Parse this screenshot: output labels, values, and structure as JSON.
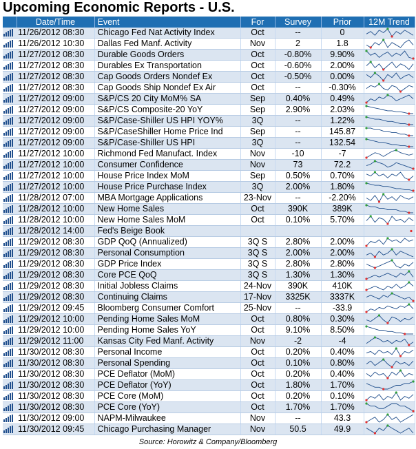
{
  "title": "Upcoming Economic Reports - U.S.",
  "source": "Source: Horowitz & Company/Bloomberg",
  "columns": [
    "Date/Time",
    "Event",
    "For",
    "Survey",
    "Prior",
    "12M Trend"
  ],
  "icon": "bar-chart-icon",
  "colors": {
    "header_bg": "#1f6fb3",
    "row_alt": "#dbe5f1",
    "trend_line": "#1f4e8c",
    "trend_low": "#e03030",
    "trend_high": "#2e9d3a"
  },
  "rows": [
    {
      "datetime": "11/26/2012 08:30",
      "event": "Chicago Fed Nat Activity Index",
      "for": "Oct",
      "survey": "--",
      "prior": "0"
    },
    {
      "datetime": "11/26/2012 10:30",
      "event": "Dallas Fed Manf. Activity",
      "for": "Nov",
      "survey": "2",
      "prior": "1.8"
    },
    {
      "datetime": "11/27/2012 08:30",
      "event": "Durable Goods Orders",
      "for": "Oct",
      "survey": "-0.80%",
      "prior": "9.90%"
    },
    {
      "datetime": "11/27/2012 08:30",
      "event": "Durables Ex Transportation",
      "for": "Oct",
      "survey": "-0.60%",
      "prior": "2.00%"
    },
    {
      "datetime": "11/27/2012 08:30",
      "event": "Cap Goods Orders Nondef Ex",
      "for": "Oct",
      "survey": "-0.50%",
      "prior": "0.00%"
    },
    {
      "datetime": "11/27/2012 08:30",
      "event": "Cap Goods Ship Nondef Ex Air",
      "for": "Oct",
      "survey": "--",
      "prior": "-0.30%"
    },
    {
      "datetime": "11/27/2012 09:00",
      "event": "S&P/CS 20 City MoM% SA",
      "for": "Sep",
      "survey": "0.40%",
      "prior": "0.49%"
    },
    {
      "datetime": "11/27/2012 09:00",
      "event": "S&P/CS Composite-20 YoY",
      "for": "Sep",
      "survey": "2.90%",
      "prior": "2.03%"
    },
    {
      "datetime": "11/27/2012 09:00",
      "event": "S&P/Case-Shiller US HPI YOY%",
      "for": "3Q",
      "survey": "--",
      "prior": "1.22%"
    },
    {
      "datetime": "11/27/2012 09:00",
      "event": "S&P/CaseShiller Home Price Ind",
      "for": "Sep",
      "survey": "--",
      "prior": "145.87"
    },
    {
      "datetime": "11/27/2012 09:00",
      "event": "S&P/Case-Shiller US HPI",
      "for": "3Q",
      "survey": "--",
      "prior": "132.54"
    },
    {
      "datetime": "11/27/2012 10:00",
      "event": "Richmond Fed Manufact. Index",
      "for": "Nov",
      "survey": "-10",
      "prior": "-7"
    },
    {
      "datetime": "11/27/2012 10:00",
      "event": "Consumer Confidence",
      "for": "Nov",
      "survey": "73",
      "prior": "72.2"
    },
    {
      "datetime": "11/27/2012 10:00",
      "event": "House Price Index MoM",
      "for": "Sep",
      "survey": "0.50%",
      "prior": "0.70%"
    },
    {
      "datetime": "11/27/2012 10:00",
      "event": "House Price Purchase Index",
      "for": "3Q",
      "survey": "2.00%",
      "prior": "1.80%"
    },
    {
      "datetime": "11/28/2012 07:00",
      "event": "MBA Mortgage Applications",
      "for": "23-Nov",
      "survey": "--",
      "prior": "-2.20%"
    },
    {
      "datetime": "11/28/2012 10:00",
      "event": "New Home Sales",
      "for": "Oct",
      "survey": "390K",
      "prior": "389K"
    },
    {
      "datetime": "11/28/2012 10:00",
      "event": "New Home Sales MoM",
      "for": "Oct",
      "survey": "0.10%",
      "prior": "5.70%"
    },
    {
      "datetime": "11/28/2012 14:00",
      "event": "Fed's Beige Book",
      "for": "",
      "survey": "",
      "prior": ""
    },
    {
      "datetime": "11/29/2012 08:30",
      "event": "GDP QoQ (Annualized)",
      "for": "3Q S",
      "survey": "2.80%",
      "prior": "2.00%"
    },
    {
      "datetime": "11/29/2012 08:30",
      "event": "Personal Consumption",
      "for": "3Q S",
      "survey": "2.00%",
      "prior": "2.00%"
    },
    {
      "datetime": "11/29/2012 08:30",
      "event": "GDP Price Index",
      "for": "3Q S",
      "survey": "2.80%",
      "prior": "2.80%"
    },
    {
      "datetime": "11/29/2012 08:30",
      "event": "Core PCE QoQ",
      "for": "3Q S",
      "survey": "1.30%",
      "prior": "1.30%"
    },
    {
      "datetime": "11/29/2012 08:30",
      "event": "Initial Jobless Claims",
      "for": "24-Nov",
      "survey": "390K",
      "prior": "410K"
    },
    {
      "datetime": "11/29/2012 08:30",
      "event": "Continuing Claims",
      "for": "17-Nov",
      "survey": "3325K",
      "prior": "3337K"
    },
    {
      "datetime": "11/29/2012 09:45",
      "event": "Bloomberg Consumer Comfort",
      "for": "25-Nov",
      "survey": "--",
      "prior": "-33.9"
    },
    {
      "datetime": "11/29/2012 10:00",
      "event": "Pending Home Sales MoM",
      "for": "Oct",
      "survey": "0.80%",
      "prior": "0.30%"
    },
    {
      "datetime": "11/29/2012 10:00",
      "event": "Pending Home Sales YoY",
      "for": "Oct",
      "survey": "9.10%",
      "prior": "8.50%"
    },
    {
      "datetime": "11/29/2012 11:00",
      "event": "Kansas City Fed Manf. Activity",
      "for": "Nov",
      "survey": "-2",
      "prior": "-4"
    },
    {
      "datetime": "11/30/2012 08:30",
      "event": "Personal Income",
      "for": "Oct",
      "survey": "0.20%",
      "prior": "0.40%"
    },
    {
      "datetime": "11/30/2012 08:30",
      "event": "Personal Spending",
      "for": "Oct",
      "survey": "0.10%",
      "prior": "0.80%"
    },
    {
      "datetime": "11/30/2012 08:30",
      "event": "PCE Deflator (MoM)",
      "for": "Oct",
      "survey": "0.20%",
      "prior": "0.40%"
    },
    {
      "datetime": "11/30/2012 08:30",
      "event": "PCE Deflator (YoY)",
      "for": "Oct",
      "survey": "1.80%",
      "prior": "1.70%"
    },
    {
      "datetime": "11/30/2012 08:30",
      "event": "PCE Core (MoM)",
      "for": "Oct",
      "survey": "0.20%",
      "prior": "0.10%"
    },
    {
      "datetime": "11/30/2012 08:30",
      "event": "PCE Core (YoY)",
      "for": "Oct",
      "survey": "1.70%",
      "prior": "1.70%"
    },
    {
      "datetime": "11/30/2012 09:00",
      "event": "NAPM-Milwaukee",
      "for": "Nov",
      "survey": "--",
      "prior": "43.3"
    },
    {
      "datetime": "11/30/2012 09:45",
      "event": "Chicago Purchasing Manager",
      "for": "Nov",
      "survey": "50.5",
      "prior": "49.9"
    }
  ]
}
